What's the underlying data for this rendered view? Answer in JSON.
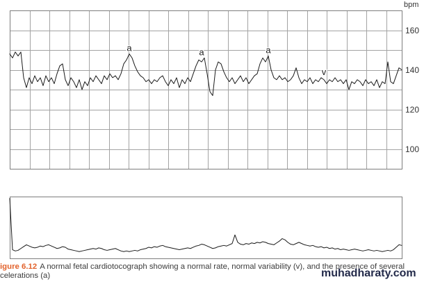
{
  "chart_data": [
    {
      "type": "line",
      "ylabel": "bpm",
      "ylim": [
        90,
        170
      ],
      "yticks": [
        100,
        120,
        140,
        160
      ],
      "ygrid_step": 10,
      "grid": true,
      "series": [
        {
          "values": [
            148,
            146,
            149,
            147,
            149,
            136,
            131,
            136,
            133,
            137,
            134,
            136,
            132,
            137,
            134,
            136,
            133,
            138,
            142,
            143,
            135,
            132,
            136,
            134,
            131,
            135,
            130,
            134,
            132,
            136,
            134,
            137,
            135,
            133,
            137,
            135,
            138,
            136,
            137,
            135,
            138,
            143,
            145,
            148,
            146,
            142,
            139,
            137,
            136,
            134,
            135,
            133,
            135,
            134,
            136,
            137,
            134,
            132,
            135,
            133,
            136,
            131,
            135,
            133,
            136,
            134,
            138,
            142,
            145,
            144,
            146,
            138,
            129,
            127,
            140,
            144,
            143,
            139,
            136,
            134,
            136,
            133,
            135,
            137,
            134,
            136,
            133,
            135,
            137,
            138,
            143,
            146,
            144,
            147,
            140,
            136,
            135,
            137,
            135,
            136,
            134,
            135,
            137,
            141,
            136,
            133,
            135,
            134,
            136,
            133,
            135,
            134,
            136,
            135,
            133,
            135,
            134,
            136,
            134,
            135,
            133,
            135,
            130,
            134,
            133,
            135,
            134,
            132,
            135,
            133,
            134,
            132,
            135,
            131,
            134,
            133,
            144,
            134,
            133,
            137,
            141,
            140
          ]
        }
      ],
      "annotations": [
        {
          "text": "a",
          "at": 43
        },
        {
          "text": "a",
          "at": 69
        },
        {
          "text": "a",
          "at": 93
        },
        {
          "text": "v",
          "at": 113
        }
      ]
    },
    {
      "type": "line",
      "ylim": [
        0,
        100
      ],
      "grid": false,
      "series": [
        {
          "values": [
            97,
            14,
            12,
            13,
            16,
            19,
            22,
            20,
            18,
            17,
            18,
            20,
            19,
            21,
            22,
            20,
            18,
            16,
            17,
            19,
            18,
            15,
            14,
            13,
            12,
            11,
            12,
            13,
            14,
            15,
            16,
            15,
            17,
            16,
            14,
            13,
            14,
            15,
            16,
            14,
            12,
            11,
            12,
            11,
            12,
            13,
            12,
            14,
            15,
            16,
            18,
            17,
            19,
            18,
            20,
            21,
            19,
            18,
            17,
            16,
            15,
            14,
            15,
            16,
            17,
            16,
            18,
            20,
            21,
            23,
            22,
            20,
            18,
            16,
            17,
            19,
            20,
            21,
            20,
            22,
            24,
            38,
            26,
            23,
            22,
            24,
            23,
            25,
            24,
            26,
            25,
            27,
            26,
            24,
            23,
            22,
            25,
            28,
            32,
            30,
            26,
            23,
            22,
            24,
            26,
            24,
            22,
            21,
            20,
            21,
            19,
            18,
            19,
            17,
            18,
            16,
            17,
            15,
            16,
            14,
            15,
            14,
            13,
            14,
            15,
            14,
            13,
            12,
            13,
            14,
            13,
            12,
            13,
            12,
            11,
            12,
            13,
            12,
            14,
            18,
            22,
            21
          ]
        }
      ]
    }
  ],
  "caption": {
    "figure_label": "igure 6.12",
    "line_1": "A normal fetal cardiotocograph showing a normal rate, normal variability (v), and the presence of several",
    "line_2": "celerations (a)"
  },
  "watermark": {
    "text": "muhadharaty.com"
  },
  "colors": {
    "trace": "#1a1a1a",
    "grid": "#a3a3a3",
    "border": "#7d7d7d",
    "figure_label": "#e2622c",
    "caption_text": "#3b3b3b",
    "watermark": "#232a4a"
  }
}
